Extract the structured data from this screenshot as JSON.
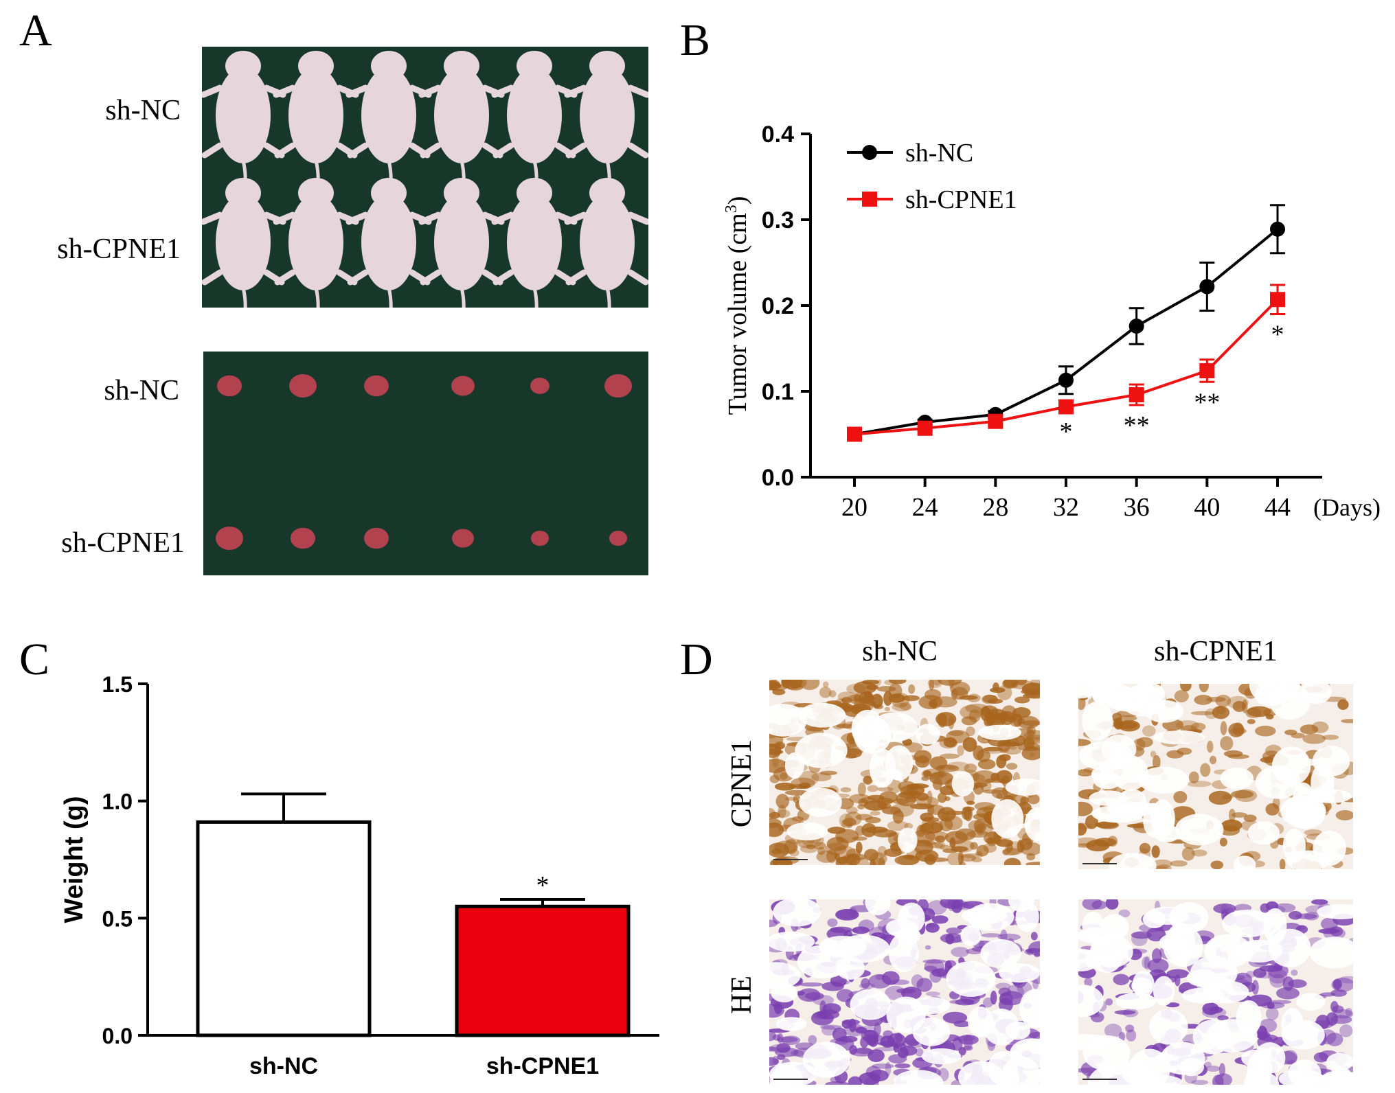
{
  "panels": {
    "A": {
      "letter": "A",
      "mice_photo": {
        "row_labels": [
          "sh-NC",
          "sh-CPNE1"
        ],
        "background": "#17372a",
        "skin": "#e6d6dc"
      },
      "tumor_photo": {
        "row_labels": [
          "sh-NC",
          "sh-CPNE1"
        ],
        "background": "#17372a",
        "tumor": "#b3424f"
      }
    },
    "B": {
      "letter": "B"
    },
    "C": {
      "letter": "C"
    },
    "D": {
      "letter": "D",
      "col_labels": [
        "sh-NC",
        "sh-CPNE1"
      ],
      "row_labels": [
        "CPNE1",
        "HE"
      ],
      "ihc_color": "#a8651e",
      "he_color": "#7a3fb0"
    }
  },
  "chart_data": [
    {
      "panel": "B",
      "type": "line",
      "x": [
        20,
        24,
        28,
        32,
        36,
        40,
        44
      ],
      "x_unit_label": "(Days)",
      "ylabel": "Tumor volume (cm",
      "ylabel_sup": "3",
      "ylabel_close": ")",
      "ylim": [
        0.0,
        0.4
      ],
      "yticks": [
        "0.0",
        "0.1",
        "0.2",
        "0.3",
        "0.4"
      ],
      "legend_position": "top-left",
      "series": [
        {
          "name": "sh-NC",
          "color": "#000000",
          "marker": "circle",
          "values": [
            0.05,
            0.064,
            0.073,
            0.113,
            0.176,
            0.222,
            0.289
          ],
          "errors": [
            0.003,
            0.003,
            0.004,
            0.016,
            0.021,
            0.028,
            0.028
          ]
        },
        {
          "name": "sh-CPNE1",
          "color": "#ee1111",
          "marker": "square",
          "values": [
            0.05,
            0.057,
            0.065,
            0.082,
            0.096,
            0.124,
            0.207
          ],
          "errors": [
            0.003,
            0.003,
            0.004,
            0.005,
            0.012,
            0.013,
            0.017
          ]
        }
      ],
      "annotations": [
        {
          "x": 32,
          "text": "*"
        },
        {
          "x": 36,
          "text": "**"
        },
        {
          "x": 40,
          "text": "**"
        },
        {
          "x": 44,
          "text": "*"
        }
      ]
    },
    {
      "panel": "C",
      "type": "bar",
      "categories": [
        "sh-NC",
        "sh-CPNE1"
      ],
      "values": [
        0.91,
        0.55
      ],
      "errors": [
        0.12,
        0.03
      ],
      "colors": [
        "#ffffff",
        "#e8000e"
      ],
      "ylabel": "Weight (g)",
      "ylim": [
        0.0,
        1.5
      ],
      "yticks": [
        "0.0",
        "0.5",
        "1.0",
        "1.5"
      ],
      "annotations": [
        {
          "category": "sh-CPNE1",
          "text": "*"
        }
      ]
    }
  ]
}
